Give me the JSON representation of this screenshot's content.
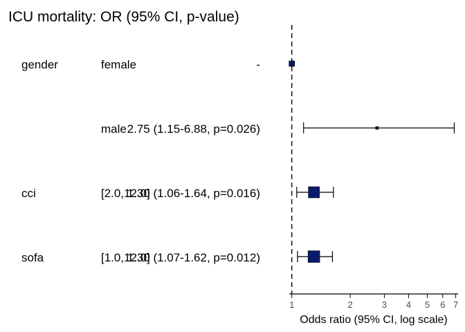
{
  "chart_data": {
    "type": "forest",
    "title": "ICU mortality: OR (95% CI, p-value)",
    "xlabel": "Odds ratio (95% CI, log scale)",
    "x_scale": "log",
    "xlim": [
      0.97,
      7.2
    ],
    "x_ticks": [
      1,
      2,
      3,
      4,
      5,
      6,
      7
    ],
    "reference_line": 1,
    "colors": {
      "box": "#0a1a6b",
      "line": "#000000"
    },
    "rows": [
      {
        "variable": "gender",
        "level": "female",
        "estimate_text": "-",
        "or": 1.0,
        "lower": null,
        "upper": null
      },
      {
        "variable": "",
        "level": "male",
        "estimate_text": "2.75 (1.15-6.88, p=0.026)",
        "or": 2.75,
        "lower": 1.15,
        "upper": 6.88
      },
      {
        "variable": "cci",
        "level": "[2.0,12.0]",
        "estimate_text": "1.30 (1.06-1.64, p=0.016)",
        "or": 1.3,
        "lower": 1.06,
        "upper": 1.64
      },
      {
        "variable": "sofa",
        "level": "[1.0,12.0]",
        "estimate_text": "1.30 (1.07-1.62, p=0.012)",
        "or": 1.3,
        "lower": 1.07,
        "upper": 1.62
      }
    ]
  }
}
